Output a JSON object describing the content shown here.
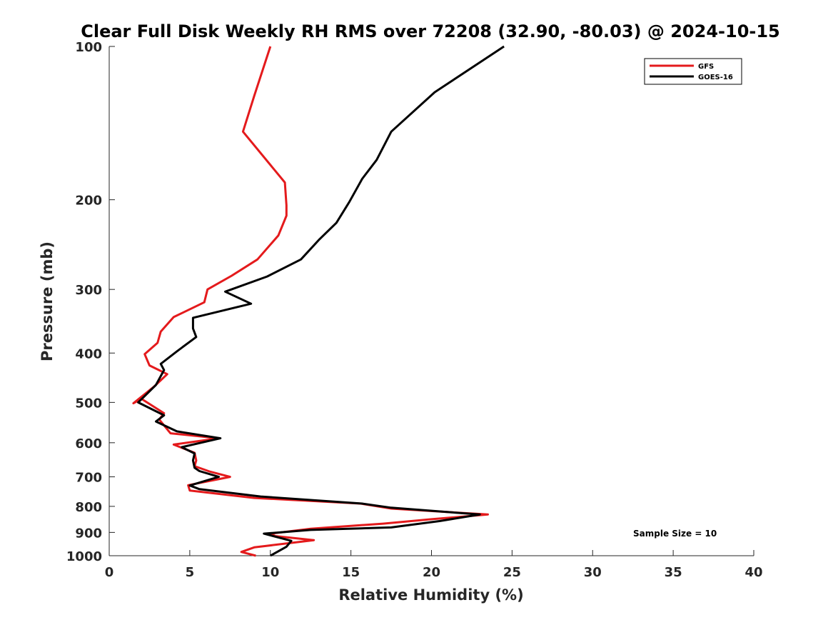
{
  "chart_data": {
    "type": "line",
    "title": "Clear Full Disk Weekly RH RMS over 72208 (32.90, -80.03) @ 2024-10-15",
    "xlabel": "Relative Humidity (%)",
    "ylabel": "Pressure (mb)",
    "xlim": [
      0,
      40
    ],
    "ylim": [
      1000,
      100
    ],
    "yscale": "log",
    "xticks": [
      0,
      5,
      10,
      15,
      20,
      25,
      30,
      35,
      40
    ],
    "yticks": [
      100,
      200,
      300,
      400,
      500,
      600,
      700,
      800,
      900,
      1000
    ],
    "legend_position": "top-right",
    "annotation": "Sample Size = 10",
    "series": [
      {
        "name": "GFS",
        "color": "#e41a1c",
        "x": [
          10.0,
          9.0,
          8.3,
          10.9,
          11.0,
          11.0,
          10.5,
          9.2,
          7.6,
          6.1,
          5.9,
          4.0,
          3.2,
          3.0,
          2.2,
          2.5,
          3.6,
          2.8,
          1.5,
          2.0,
          3.4,
          3.1,
          3.8,
          6.8,
          4.0,
          5.3,
          5.4,
          5.3,
          6.2,
          7.5,
          4.9,
          5.0,
          9.0,
          15.6,
          17.5,
          23.5,
          20.0,
          17.0,
          12.5,
          10.0,
          10.3,
          12.7,
          9.0,
          8.2,
          9.1
        ],
        "y": [
          100,
          125,
          147,
          185,
          205,
          215,
          235,
          262,
          282,
          300,
          318,
          340,
          363,
          382,
          402,
          423,
          440,
          465,
          502,
          492,
          525,
          540,
          575,
          588,
          605,
          628,
          650,
          667,
          683,
          700,
          727,
          745,
          770,
          790,
          808,
          830,
          848,
          865,
          885,
          905,
          915,
          932,
          963,
          983,
          1000
        ],
        "legend_label": "GFS"
      },
      {
        "name": "GOES-16",
        "color": "#000000",
        "x": [
          24.5,
          20.2,
          17.5,
          16.6,
          15.7,
          14.9,
          14.1,
          13.0,
          11.9,
          9.8,
          7.2,
          8.8,
          5.2,
          5.2,
          5.4,
          4.2,
          3.2,
          3.4,
          2.9,
          1.8,
          3.4,
          2.9,
          4.2,
          6.9,
          4.5,
          5.3,
          5.2,
          5.3,
          5.6,
          6.8,
          5.0,
          5.6,
          9.4,
          15.7,
          17.5,
          23.0,
          20.5,
          17.5,
          12.5,
          9.6,
          11.3,
          11.0,
          10.0
        ],
        "y": [
          100,
          123,
          147,
          167,
          182,
          202,
          222,
          240,
          262,
          283,
          303,
          320,
          341,
          358,
          372,
          397,
          420,
          432,
          462,
          500,
          530,
          545,
          570,
          588,
          612,
          630,
          650,
          672,
          682,
          700,
          728,
          740,
          765,
          790,
          805,
          830,
          855,
          880,
          890,
          905,
          935,
          960,
          1000
        ],
        "legend_label": "GOES-16"
      }
    ]
  }
}
